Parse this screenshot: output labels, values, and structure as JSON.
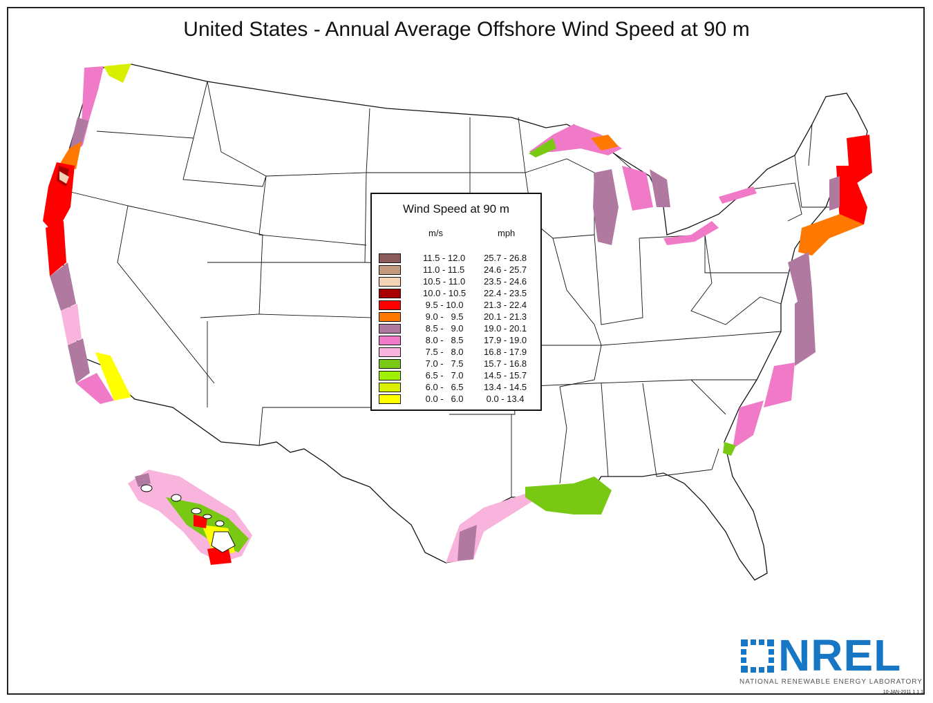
{
  "title": "United States - Annual Average Offshore Wind Speed at 90 m",
  "legend": {
    "title": "Wind Speed at 90 m",
    "unit_ms": "m/s",
    "unit_mph": "mph",
    "rows": [
      {
        "ms": "11.5 - 12.0",
        "mph": "25.7 - 26.8",
        "color": "#8b5a5a"
      },
      {
        "ms": "11.0 - 11.5",
        "mph": "24.6 - 25.7",
        "color": "#c49a7e"
      },
      {
        "ms": "10.5 - 11.0",
        "mph": "23.5 - 24.6",
        "color": "#f4d2b6"
      },
      {
        "ms": "10.0 - 10.5",
        "mph": "22.4 - 23.5",
        "color": "#a80000"
      },
      {
        "ms": " 9.5 - 10.0",
        "mph": "21.3 - 22.4",
        "color": "#ff0000"
      },
      {
        "ms": " 9.0 -   9.5",
        "mph": "20.1 - 21.3",
        "color": "#ff7800"
      },
      {
        "ms": " 8.5 -   9.0",
        "mph": "19.0 - 20.1",
        "color": "#b07aa0"
      },
      {
        "ms": " 8.0 -   8.5",
        "mph": "17.9 - 19.0",
        "color": "#f07ac8"
      },
      {
        "ms": " 7.5 -   8.0",
        "mph": "16.8 - 17.9",
        "color": "#f8b4dc"
      },
      {
        "ms": " 7.0 -   7.5",
        "mph": "15.7 - 16.8",
        "color": "#78c814"
      },
      {
        "ms": " 6.5 -   7.0",
        "mph": "14.5 - 15.7",
        "color": "#a0f000"
      },
      {
        "ms": " 6.0 -   6.5",
        "mph": "13.4 - 14.5",
        "color": "#d8f000"
      },
      {
        "ms": " 0.0 -   6.0",
        "mph": " 0.0 - 13.4",
        "color": "#ffff00"
      }
    ]
  },
  "logo": {
    "name": "NREL",
    "subtitle": "NATIONAL RENEWABLE ENERGY LABORATORY",
    "color": "#1877c5"
  },
  "date_stamp": "10-JAN-2011 1.1.1"
}
